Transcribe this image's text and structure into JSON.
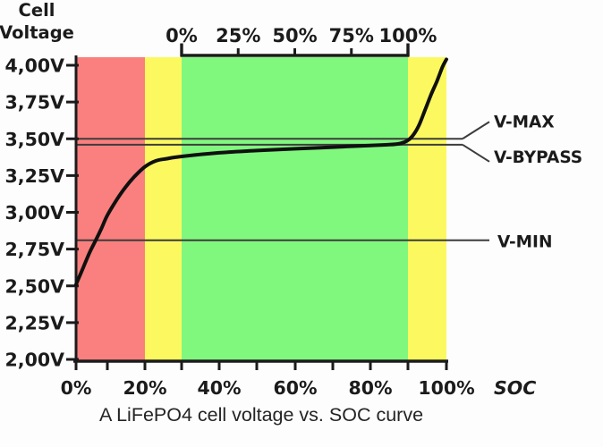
{
  "chart_data": {
    "type": "line",
    "caption": "A LiFePO4 cell voltage vs. SOC curve",
    "xlabel": "SOC",
    "ylabel": "Cell Voltage",
    "x_axis": {
      "tick_pcts": [
        0,
        10,
        20,
        30,
        40,
        50,
        60,
        70,
        80,
        90,
        100
      ],
      "label_pcts": [
        0,
        20,
        40,
        60,
        80,
        100
      ],
      "labels": [
        "0%",
        "20%",
        "40%",
        "60%",
        "80%",
        "100%"
      ]
    },
    "y_axis": {
      "range": [
        2.0,
        4.0
      ],
      "ticks": [
        4.0,
        3.75,
        3.5,
        3.25,
        3.0,
        2.75,
        2.5,
        2.25,
        2.0
      ],
      "labels": [
        "4,00V",
        "3,75V",
        "3,50V",
        "3,25V",
        "3,00V",
        "2,75V",
        "2,50V",
        "2,25V",
        "2,00V"
      ]
    },
    "top_axis": {
      "span_pct": [
        30,
        90
      ],
      "label_pcts": [
        0,
        25,
        50,
        75,
        100
      ],
      "labels": [
        "0%",
        "25%",
        "50%",
        "75%",
        "100%"
      ]
    },
    "zones": [
      {
        "name": "red-low",
        "from": 0,
        "to": 20,
        "color": "#f9807e"
      },
      {
        "name": "yellow-low",
        "from": 20,
        "to": 30,
        "color": "#fbf95f"
      },
      {
        "name": "green-normal",
        "from": 30,
        "to": 90,
        "color": "#80f87e"
      },
      {
        "name": "yellow-high",
        "from": 90,
        "to": 100,
        "color": "#fbf95f"
      }
    ],
    "ref_lines": [
      {
        "name": "V-MAX",
        "voltage": 3.5,
        "branch": "up"
      },
      {
        "name": "V-BYPASS",
        "voltage": 3.46,
        "branch": "down"
      },
      {
        "name": "V-MIN",
        "voltage": 2.81,
        "branch": "straight"
      }
    ],
    "series": [
      {
        "name": "cell-voltage",
        "points": [
          [
            0,
            2.51
          ],
          [
            1.5,
            2.585
          ],
          [
            3,
            2.66
          ],
          [
            4.5,
            2.735
          ],
          [
            6.3,
            2.81
          ],
          [
            8,
            2.885
          ],
          [
            10,
            2.98
          ],
          [
            12.6,
            3.09
          ],
          [
            14.8,
            3.17
          ],
          [
            17.1,
            3.24
          ],
          [
            20,
            3.31
          ],
          [
            23,
            3.35
          ],
          [
            26,
            3.365
          ],
          [
            30,
            3.38
          ],
          [
            40,
            3.405
          ],
          [
            50,
            3.42
          ],
          [
            60,
            3.432
          ],
          [
            70,
            3.443
          ],
          [
            80,
            3.455
          ],
          [
            85,
            3.46
          ],
          [
            88,
            3.468
          ],
          [
            90,
            3.49
          ],
          [
            91.5,
            3.53
          ],
          [
            93,
            3.6
          ],
          [
            94.5,
            3.7
          ],
          [
            96,
            3.8
          ],
          [
            97.5,
            3.89
          ],
          [
            99,
            3.99
          ],
          [
            100,
            4.04
          ]
        ]
      }
    ]
  }
}
